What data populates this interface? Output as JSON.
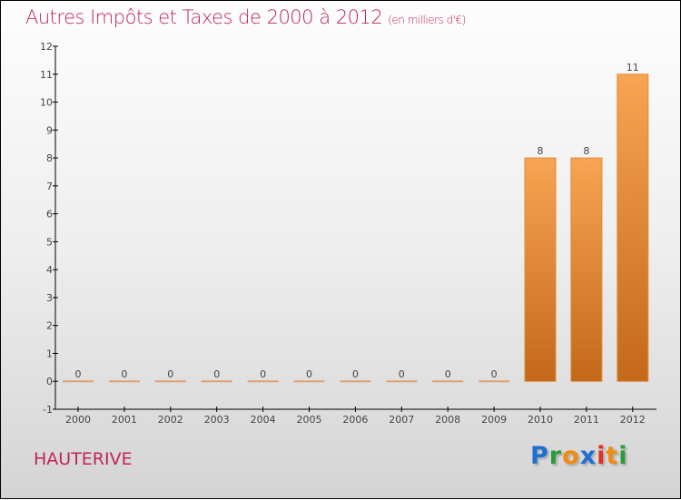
{
  "chart_data": {
    "type": "bar",
    "title": "Autres Impôts et Taxes de 2000 à 2012",
    "subtitle": "(en milliers d'€)",
    "categories": [
      "2000",
      "2001",
      "2002",
      "2003",
      "2004",
      "2005",
      "2006",
      "2007",
      "2008",
      "2009",
      "2010",
      "2011",
      "2012"
    ],
    "values": [
      0,
      0,
      0,
      0,
      0,
      0,
      0,
      0,
      0,
      0,
      8,
      8,
      11
    ],
    "data_labels": [
      "0",
      "0",
      "0",
      "0",
      "0",
      "0",
      "0",
      "0",
      "0",
      "0",
      "8",
      "8",
      "11"
    ],
    "ylim": [
      -1,
      12
    ],
    "yticks": [
      "-1",
      "0",
      "1",
      "2",
      "3",
      "4",
      "5",
      "6",
      "7",
      "8",
      "9",
      "10",
      "11",
      "12"
    ],
    "xlabel": "",
    "ylabel": "",
    "grid": false,
    "bar_color": "#f0922e",
    "bar_color_dark": "#c4681a"
  },
  "location": "HAUTERIVE",
  "logo": {
    "letters": [
      "P",
      "r",
      "o",
      "x",
      "i",
      "t",
      "i"
    ],
    "colors": [
      "#1e6fd0",
      "#2a9a3a",
      "#f08a10",
      "#1e6fd0",
      "#e03020",
      "#f08a10",
      "#2a9a3a"
    ]
  }
}
